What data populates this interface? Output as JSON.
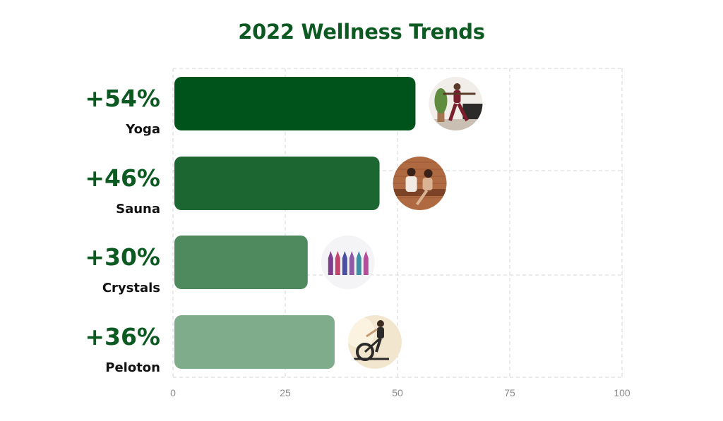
{
  "chart_data": {
    "type": "bar",
    "orientation": "horizontal",
    "title": "2022 Wellness Trends",
    "xlabel": "",
    "ylabel": "",
    "xlim": [
      0,
      100
    ],
    "x_ticks": [
      0,
      25,
      50,
      75,
      100
    ],
    "grid": true,
    "legend": "none",
    "categories": [
      "Yoga",
      "Sauna",
      "Crystals",
      "Peloton"
    ],
    "values": [
      54,
      46,
      30,
      36
    ],
    "value_labels": [
      "+54%",
      "+46%",
      "+30%",
      "+36%"
    ],
    "bar_colors": [
      "#00541b",
      "#1c6632",
      "#4f8a5f",
      "#7fad8b"
    ],
    "images": [
      "yoga-photo",
      "sauna-photo",
      "crystals-photo",
      "peloton-photo"
    ]
  },
  "colors": {
    "title": "#0c5a22",
    "value_label": "#0c5a22",
    "grid": "#d4d4d4"
  }
}
